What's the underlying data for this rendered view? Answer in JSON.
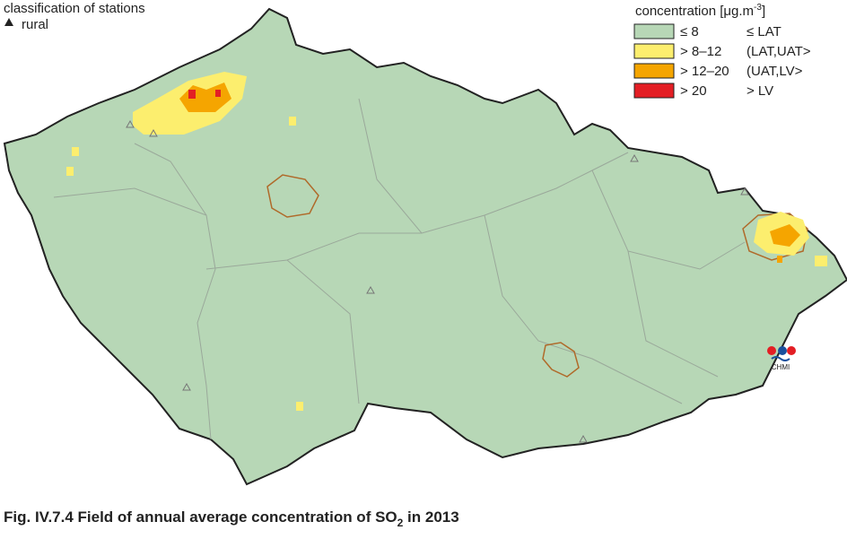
{
  "stations": {
    "title": "classification of stations",
    "items": [
      {
        "label": "rural"
      }
    ]
  },
  "legend": {
    "title": {
      "pre": "concentration [μg.m",
      "sup": "-3",
      "post": "]"
    },
    "items": [
      {
        "range": "≤ 8",
        "class": "≤ LAT",
        "color": "#b7d7b6"
      },
      {
        "range": "> 8–12",
        "class": "(LAT,UAT>",
        "color": "#fcee6e"
      },
      {
        "range": "> 12–20",
        "class": "(UAT,LV>",
        "color": "#f5a500"
      },
      {
        "range": "> 20",
        "class": "> LV",
        "color": "#e31e24"
      }
    ]
  },
  "logo": "CHMI",
  "caption": {
    "pre": "Fig. IV.7.4  Field of annual average concentration of SO",
    "sub": "2",
    "post": " in 2013"
  }
}
